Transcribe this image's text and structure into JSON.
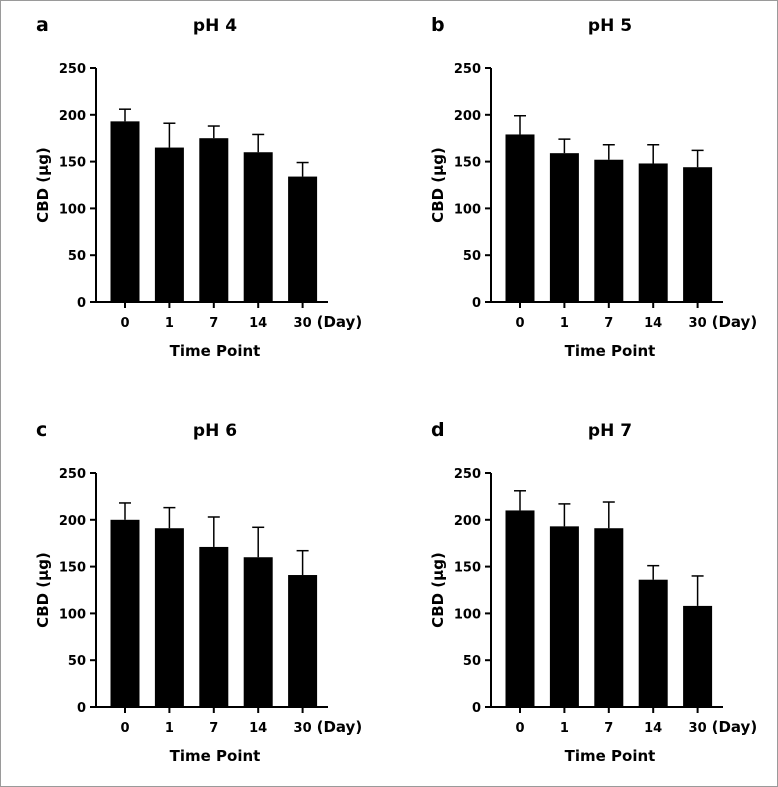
{
  "chart_data": [
    {
      "panel": "a",
      "type": "bar",
      "title": "pH 4",
      "xlabel": "Time Point",
      "ylabel": "CBD (µg)",
      "x_unit": "(Day)",
      "categories": [
        "0",
        "1",
        "7",
        "14",
        "30"
      ],
      "values": [
        193,
        165,
        175,
        160,
        134
      ],
      "error": [
        13,
        26,
        13,
        19,
        15
      ],
      "ylim": [
        0,
        250
      ],
      "yticks": [
        0,
        50,
        100,
        150,
        200,
        250
      ]
    },
    {
      "panel": "b",
      "type": "bar",
      "title": "pH 5",
      "xlabel": "Time Point",
      "ylabel": "CBD (µg)",
      "x_unit": "(Day)",
      "categories": [
        "0",
        "1",
        "7",
        "14",
        "30"
      ],
      "values": [
        179,
        159,
        152,
        148,
        144
      ],
      "error": [
        20,
        15,
        16,
        20,
        18
      ],
      "ylim": [
        0,
        250
      ],
      "yticks": [
        0,
        50,
        100,
        150,
        200,
        250
      ]
    },
    {
      "panel": "c",
      "type": "bar",
      "title": "pH 6",
      "xlabel": "Time Point",
      "ylabel": "CBD (µg)",
      "x_unit": "(Day)",
      "categories": [
        "0",
        "1",
        "7",
        "14",
        "30"
      ],
      "values": [
        200,
        191,
        171,
        160,
        141
      ],
      "error": [
        18,
        22,
        32,
        32,
        26
      ],
      "ylim": [
        0,
        250
      ],
      "yticks": [
        0,
        50,
        100,
        150,
        200,
        250
      ]
    },
    {
      "panel": "d",
      "type": "bar",
      "title": "pH 7",
      "xlabel": "Time Point",
      "ylabel": "CBD (µg)",
      "x_unit": "(Day)",
      "categories": [
        "0",
        "1",
        "7",
        "14",
        "30"
      ],
      "values": [
        210,
        193,
        191,
        136,
        108
      ],
      "error": [
        21,
        24,
        28,
        15,
        32
      ],
      "ylim": [
        0,
        250
      ],
      "yticks": [
        0,
        50,
        100,
        150,
        200,
        250
      ]
    }
  ],
  "colors": {
    "bar": "#000000",
    "axis": "#000000",
    "background": "#ffffff"
  }
}
